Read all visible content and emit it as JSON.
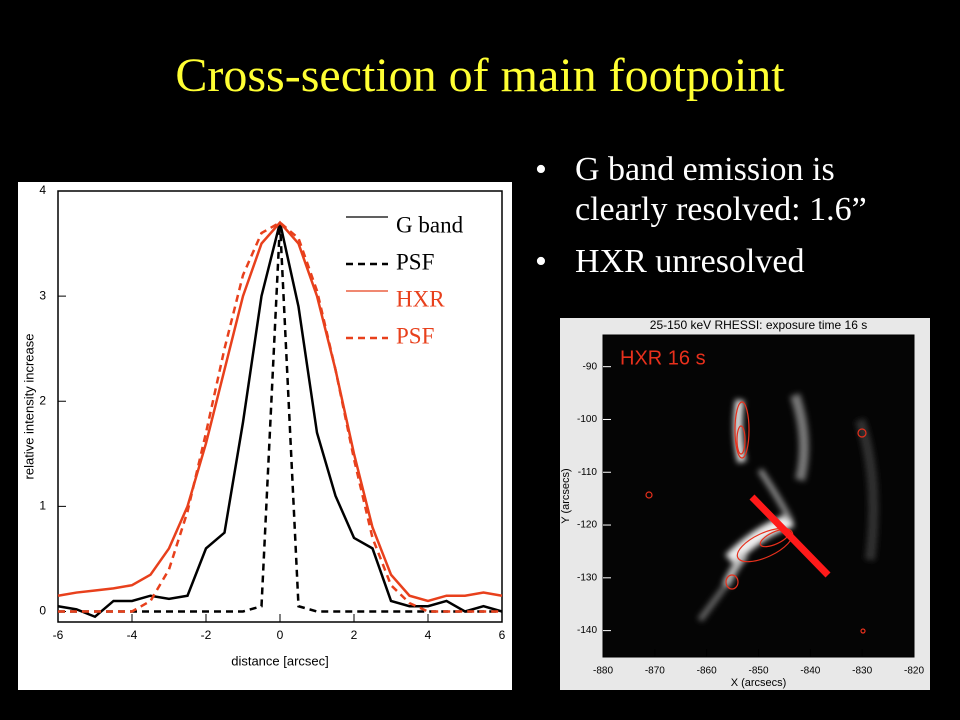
{
  "title": "Cross-section of main footpoint",
  "bullets": [
    "G band emission is clearly resolved: 1.6”",
    "HXR unresolved"
  ],
  "chart_data": [
    {
      "type": "line",
      "xlabel": "distance [arcsec]",
      "ylabel": "relative intensity increase",
      "x": [
        -6,
        -5.5,
        -5,
        -4.5,
        -4,
        -3.5,
        -3,
        -2.5,
        -2,
        -1.5,
        -1,
        -0.5,
        0,
        0.5,
        1,
        1.5,
        2,
        2.5,
        3,
        3.5,
        4,
        4.5,
        5,
        5.5,
        6
      ],
      "series": [
        {
          "name": "G band",
          "color": "#000000",
          "dashed": false,
          "values": [
            0.05,
            0.02,
            -0.05,
            0.1,
            0.1,
            0.15,
            0.12,
            0.15,
            0.6,
            0.75,
            1.8,
            3.0,
            3.7,
            2.9,
            1.7,
            1.1,
            0.7,
            0.6,
            0.1,
            0.05,
            0.05,
            0.1,
            0.0,
            0.05,
            0.0
          ]
        },
        {
          "name": "PSF",
          "color": "#000000",
          "dashed": true,
          "values": [
            0,
            0,
            0,
            0,
            0,
            0,
            0,
            0,
            0,
            0,
            0,
            0.05,
            3.7,
            0.05,
            0,
            0,
            0,
            0,
            0,
            0,
            0,
            0,
            0,
            0,
            0
          ]
        },
        {
          "name": "HXR",
          "color": "#e8401c",
          "dashed": false,
          "values": [
            0.15,
            0.18,
            0.2,
            0.22,
            0.25,
            0.35,
            0.6,
            1.0,
            1.6,
            2.3,
            3.0,
            3.5,
            3.7,
            3.5,
            3.0,
            2.3,
            1.5,
            0.8,
            0.35,
            0.15,
            0.1,
            0.15,
            0.15,
            0.18,
            0.15
          ]
        },
        {
          "name": "PSF",
          "color": "#e8401c",
          "dashed": true,
          "values": [
            0,
            0,
            0,
            0,
            0,
            0.1,
            0.4,
            0.95,
            1.7,
            2.5,
            3.2,
            3.6,
            3.7,
            3.55,
            3.05,
            2.3,
            1.45,
            0.7,
            0.25,
            0.08,
            0,
            0,
            0,
            0,
            0
          ]
        }
      ],
      "xlim": [
        -6,
        6
      ],
      "ylim": [
        -0.1,
        4
      ],
      "xticks": [
        -6,
        -4,
        -2,
        0,
        2,
        4,
        6
      ],
      "yticks": [
        0,
        1,
        2,
        3,
        4
      ]
    },
    {
      "type": "image",
      "title": "25-150 keV RHESSI: exposure time 16 s",
      "annotation": "HXR 16 s",
      "xlabel": "X (arcsecs)",
      "ylabel": "Y (arcsecs)",
      "xlim": [
        -880,
        -820
      ],
      "ylim": [
        -145,
        -84
      ],
      "xticks": [
        -880,
        -870,
        -860,
        -850,
        -840,
        -830,
        -820
      ],
      "yticks": [
        -90,
        -100,
        -110,
        -120,
        -130,
        -140
      ]
    }
  ]
}
